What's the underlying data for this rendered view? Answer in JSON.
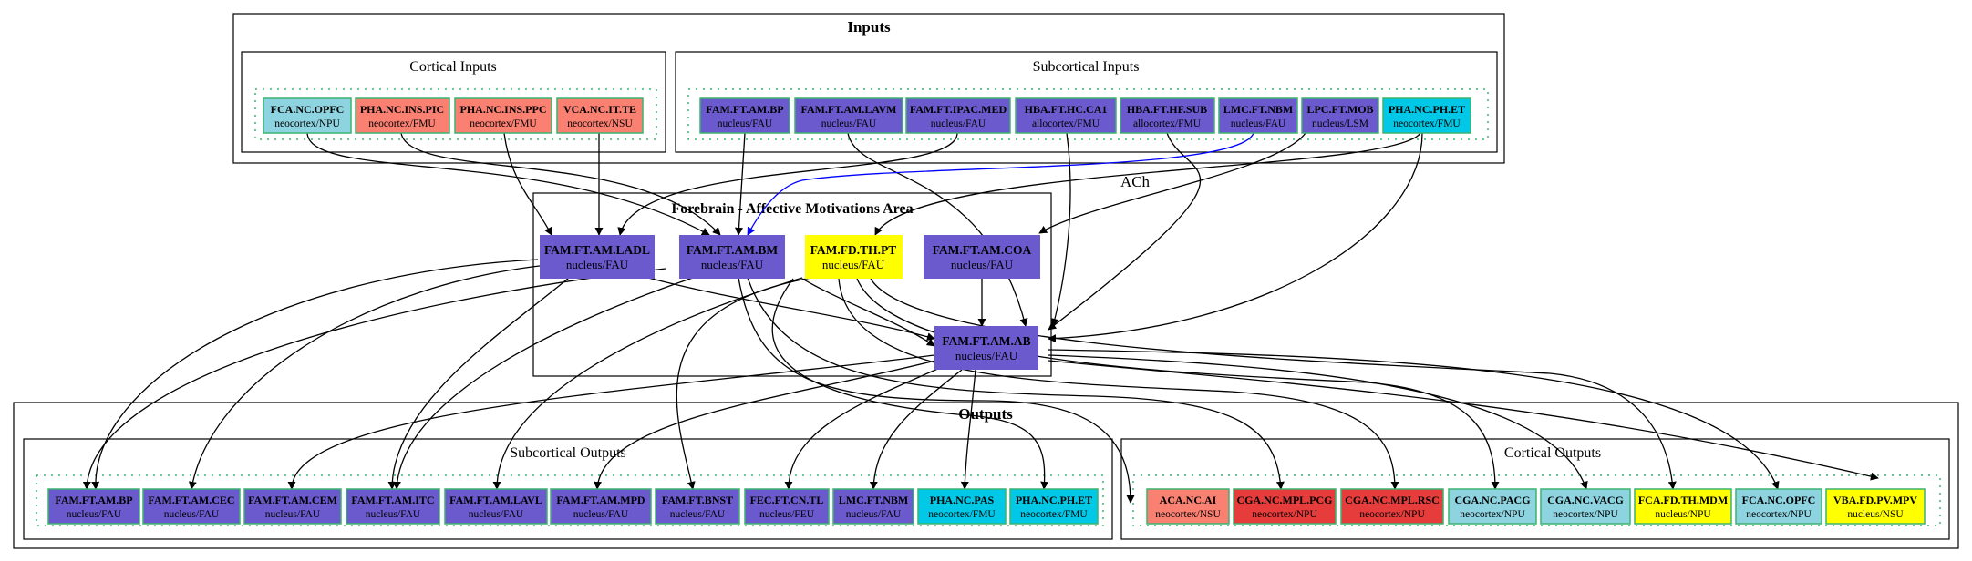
{
  "clusters": {
    "inputs": "Inputs",
    "cortical_inputs": "Cortical Inputs",
    "subcortical_inputs": "Subcortical Inputs",
    "forebrain": "Forebrain - Affective Motivations Area",
    "outputs": "Outputs",
    "subcortical_outputs": "Subcortical Outputs",
    "cortical_outputs": "Cortical Outputs"
  },
  "edge_labels": {
    "ach": "ACh"
  },
  "colors": {
    "purple": "#6a5acd",
    "salmon": "#fa8072",
    "lightblue": "#8ed3e0",
    "cyan": "#00c8e6",
    "yellow": "#ffff00",
    "red": "#e63c3c",
    "border_green": "#3cb371",
    "ach_edge": "#0000ff"
  },
  "nodes": {
    "ci_fca_opfc": {
      "name": "FCA.NC.OPFC",
      "sub": "neocortex/NPU"
    },
    "ci_pha_ins_pic": {
      "name": "PHA.NC.INS.PIC",
      "sub": "neocortex/FMU"
    },
    "ci_pha_ins_ppc": {
      "name": "PHA.NC.INS.PPC",
      "sub": "neocortex/FMU"
    },
    "ci_vca_it_te": {
      "name": "VCA.NC.IT.TE",
      "sub": "neocortex/NSU"
    },
    "si_fam_bp": {
      "name": "FAM.FT.AM.BP",
      "sub": "nucleus/FAU"
    },
    "si_fam_lavm": {
      "name": "FAM.FT.AM.LAVM",
      "sub": "nucleus/FAU"
    },
    "si_fam_ipac": {
      "name": "FAM.FT.IPAC.MED",
      "sub": "nucleus/FAU"
    },
    "si_hba_ca1": {
      "name": "HBA.FT.HC.CA1",
      "sub": "allocortex/FMU"
    },
    "si_hba_sub": {
      "name": "HBA.FT.HF.SUB",
      "sub": "allocortex/FMU"
    },
    "si_lmc_nbm": {
      "name": "LMC.FT.NBM",
      "sub": "nucleus/FAU"
    },
    "si_lpc_mob": {
      "name": "LPC.FT.MOB",
      "sub": "nucleus/LSM"
    },
    "si_pha_ph_et": {
      "name": "PHA.NC.PH.ET",
      "sub": "neocortex/FMU"
    },
    "fb_ladl": {
      "name": "FAM.FT.AM.LADL",
      "sub": "nucleus/FAU"
    },
    "fb_bm": {
      "name": "FAM.FT.AM.BM",
      "sub": "nucleus/FAU"
    },
    "fb_pt": {
      "name": "FAM.FD.TH.PT",
      "sub": "nucleus/FAU"
    },
    "fb_coa": {
      "name": "FAM.FT.AM.COA",
      "sub": "nucleus/FAU"
    },
    "fb_ab": {
      "name": "FAM.FT.AM.AB",
      "sub": "nucleus/FAU"
    },
    "so_bp": {
      "name": "FAM.FT.AM.BP",
      "sub": "nucleus/FAU"
    },
    "so_cec": {
      "name": "FAM.FT.AM.CEC",
      "sub": "nucleus/FAU"
    },
    "so_cem": {
      "name": "FAM.FT.AM.CEM",
      "sub": "nucleus/FAU"
    },
    "so_itc": {
      "name": "FAM.FT.AM.ITC",
      "sub": "nucleus/FAU"
    },
    "so_lavl": {
      "name": "FAM.FT.AM.LAVL",
      "sub": "nucleus/FAU"
    },
    "so_mpd": {
      "name": "FAM.FT.AM.MPD",
      "sub": "nucleus/FAU"
    },
    "so_bnst": {
      "name": "FAM.FT.BNST",
      "sub": "nucleus/FAU"
    },
    "so_fec_tl": {
      "name": "FEC.FT.CN.TL",
      "sub": "nucleus/FEU"
    },
    "so_lmc_nbm": {
      "name": "LMC.FT.NBM",
      "sub": "nucleus/FAU"
    },
    "so_pha_pas": {
      "name": "PHA.NC.PAS",
      "sub": "neocortex/FMU"
    },
    "so_pha_ph_et": {
      "name": "PHA.NC.PH.ET",
      "sub": "neocortex/FMU"
    },
    "co_aca_ai": {
      "name": "ACA.NC.AI",
      "sub": "neocortex/NSU"
    },
    "co_cga_pcg": {
      "name": "CGA.NC.MPL.PCG",
      "sub": "neocortex/NPU"
    },
    "co_cga_rsc": {
      "name": "CGA.NC.MPL.RSC",
      "sub": "neocortex/NPU"
    },
    "co_cga_pacg": {
      "name": "CGA.NC.PACG",
      "sub": "neocortex/NPU"
    },
    "co_cga_vacg": {
      "name": "CGA.NC.VACG",
      "sub": "neocortex/NPU"
    },
    "co_fca_mdm": {
      "name": "FCA.FD.TH.MDM",
      "sub": "nucleus/NPU"
    },
    "co_fca_opfc": {
      "name": "FCA.NC.OPFC",
      "sub": "neocortex/NPU"
    },
    "co_vba_mpv": {
      "name": "VBA.FD.PV.MPV",
      "sub": "nucleus/NSU"
    }
  }
}
